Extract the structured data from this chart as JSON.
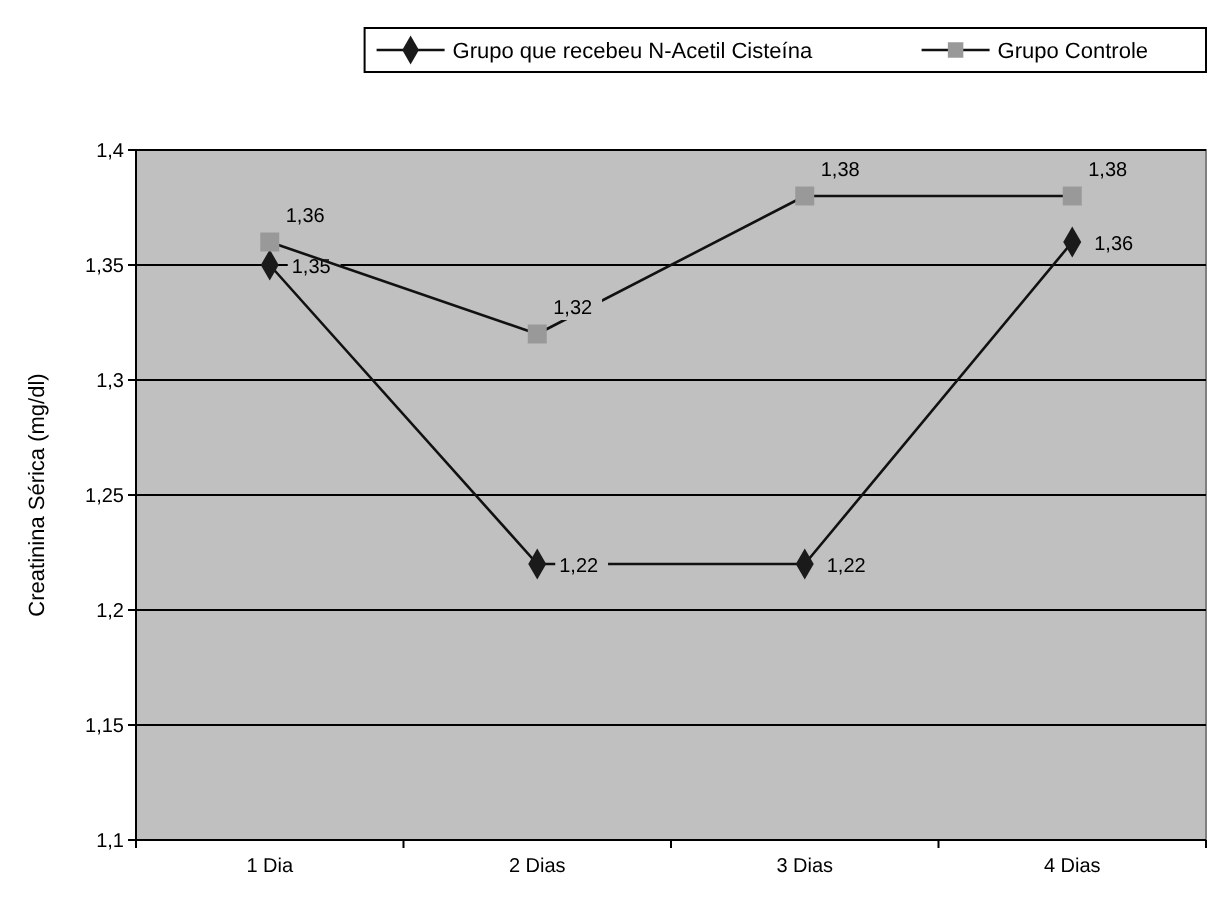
{
  "chart_data": {
    "type": "line",
    "ylabel": "Creatinina Sérica (mg/dl)",
    "categories": [
      "1 Dia",
      "2 Dias",
      "3 Dias",
      "4 Dias"
    ],
    "series": [
      {
        "name": "Grupo que recebeu N-Acetil Cisteína",
        "color": "#1a1a1a",
        "marker": "diamond",
        "values": [
          1.35,
          1.22,
          1.22,
          1.36
        ],
        "value_labels": [
          "1,35",
          "1,22",
          "1,22",
          "1,36"
        ]
      },
      {
        "name": "Grupo Controle",
        "color": "#999999",
        "marker": "square",
        "values": [
          1.36,
          1.32,
          1.38,
          1.38
        ],
        "value_labels": [
          "1,36",
          "1,32",
          "1,38",
          "1,38"
        ]
      }
    ],
    "ylim": [
      1.1,
      1.4
    ],
    "yticks": [
      {
        "value": 1.1,
        "label": "1,1"
      },
      {
        "value": 1.15,
        "label": "1,15"
      },
      {
        "value": 1.2,
        "label": "1,2"
      },
      {
        "value": 1.25,
        "label": "1,25"
      },
      {
        "value": 1.3,
        "label": "1,3"
      },
      {
        "value": 1.35,
        "label": "1,35"
      },
      {
        "value": 1.4,
        "label": "1,4"
      }
    ],
    "grid": "y",
    "legend": "top"
  }
}
